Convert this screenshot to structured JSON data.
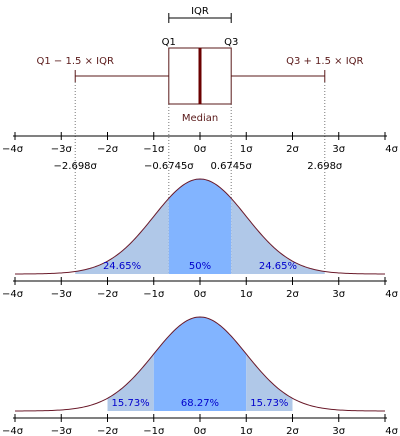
{
  "colors": {
    "boxStroke": "#5a1a1a",
    "median": "#6b0000",
    "curve": "#6a1a2a",
    "tail": "#b0c8e8",
    "center": "#82b4ff",
    "pctText": "#0000cc",
    "axis": "#000000",
    "dotted": "#777777",
    "label": "#5a1a1a"
  },
  "boxplot": {
    "iqr_label": "IQR",
    "q1_label": "Q1",
    "q3_label": "Q3",
    "median_label": "Median",
    "lower_whisker_label": "Q1 − 1.5 × IQR",
    "upper_whisker_label": "Q3 + 1.5 × IQR",
    "q1": -0.6745,
    "q3": 0.6745,
    "median": 0,
    "lower_whisker": -2.698,
    "upper_whisker": 2.698
  },
  "axis_ticks": [
    "−4σ",
    "−3σ",
    "−2σ",
    "−1σ",
    "0σ",
    "1σ",
    "2σ",
    "3σ",
    "4σ"
  ],
  "sigma_marks": [
    {
      "value": -2.698,
      "label": "−2.698σ"
    },
    {
      "value": -0.6745,
      "label": "−0.6745σ"
    },
    {
      "value": 0.6745,
      "label": "0.6745σ"
    },
    {
      "value": 2.698,
      "label": "2.698σ"
    }
  ],
  "pdf_iqr": {
    "boundaries": [
      -2.698,
      -0.6745,
      0.6745,
      2.698
    ],
    "percent_labels": [
      "24.65%",
      "50%",
      "24.65%"
    ]
  },
  "pdf_sigma": {
    "boundaries": [
      -2,
      -1,
      1,
      2
    ],
    "percent_labels": [
      "15.73%",
      "68.27%",
      "15.73%"
    ]
  }
}
